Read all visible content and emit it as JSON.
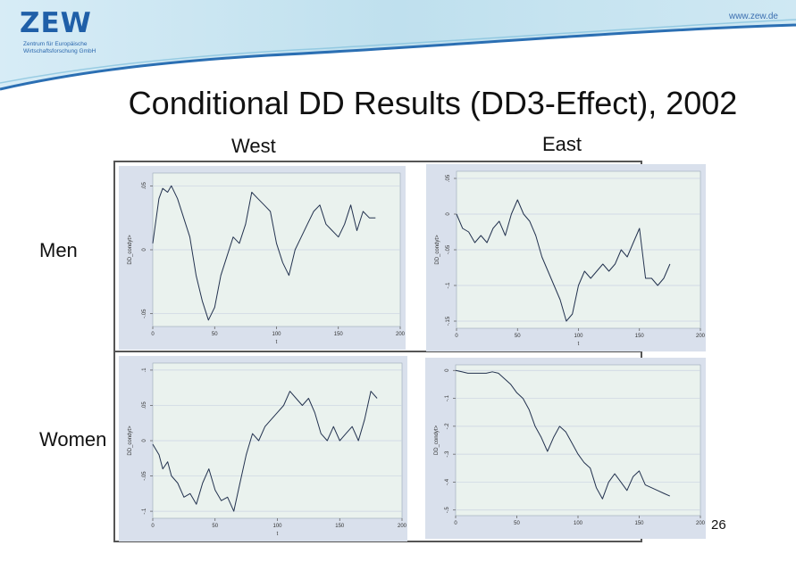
{
  "header": {
    "logo": "ZEW",
    "logo_sub_line1": "Zentrum für Europäische",
    "logo_sub_line2": "Wirtschaftsforschung GmbH",
    "url": "www.zew.de"
  },
  "slide": {
    "title": "Conditional DD Results (DD3-Effect), 2002",
    "col_west": "West",
    "col_east": "East",
    "row_men": "Men",
    "row_women": "Women",
    "page_number": "26"
  },
  "colors": {
    "brand": "#1f5fa8",
    "plot_bg": "#eaf2ee",
    "panel_bg": "#d9e0ec",
    "line": "#23324f",
    "grid": "#c9d3e2"
  },
  "chart_data": [
    {
      "type": "line",
      "panel": "West / Men",
      "xlabel": "t",
      "ylabel": "DD_condyt>",
      "xticks": [
        "0",
        "50",
        "100",
        "150",
        "200"
      ],
      "yticks": [
        ".05",
        "0",
        "-.05"
      ],
      "xlim": [
        0,
        200
      ],
      "ylim": [
        -0.06,
        0.06
      ],
      "x": [
        0,
        5,
        8,
        12,
        15,
        20,
        25,
        30,
        35,
        40,
        45,
        50,
        55,
        60,
        65,
        70,
        75,
        80,
        85,
        90,
        95,
        100,
        105,
        110,
        115,
        120,
        125,
        130,
        135,
        140,
        145,
        150,
        155,
        160,
        165,
        170,
        175,
        180
      ],
      "values": [
        0.005,
        0.04,
        0.048,
        0.045,
        0.05,
        0.04,
        0.025,
        0.01,
        -0.02,
        -0.04,
        -0.055,
        -0.045,
        -0.02,
        -0.005,
        0.01,
        0.005,
        0.02,
        0.045,
        0.04,
        0.035,
        0.03,
        0.005,
        -0.01,
        -0.02,
        0.0,
        0.01,
        0.02,
        0.03,
        0.035,
        0.02,
        0.015,
        0.01,
        0.02,
        0.035,
        0.015,
        0.03,
        0.025,
        0.025
      ]
    },
    {
      "type": "line",
      "panel": "East / Men",
      "xlabel": "t",
      "ylabel": "DD_condyt>",
      "xticks": [
        "0",
        "50",
        "100",
        "150",
        "200"
      ],
      "yticks": [
        ".05",
        "0",
        "-.05",
        "-.1",
        "-.15"
      ],
      "xlim": [
        0,
        200
      ],
      "ylim": [
        -0.16,
        0.06
      ],
      "x": [
        0,
        5,
        10,
        15,
        20,
        25,
        30,
        35,
        40,
        45,
        50,
        55,
        60,
        65,
        70,
        75,
        80,
        85,
        90,
        95,
        100,
        105,
        110,
        115,
        120,
        125,
        130,
        135,
        140,
        145,
        150,
        155,
        160,
        165,
        170,
        175
      ],
      "values": [
        0.0,
        -0.02,
        -0.025,
        -0.04,
        -0.03,
        -0.04,
        -0.02,
        -0.01,
        -0.03,
        0.0,
        0.02,
        0.0,
        -0.01,
        -0.03,
        -0.06,
        -0.08,
        -0.1,
        -0.12,
        -0.15,
        -0.14,
        -0.1,
        -0.08,
        -0.09,
        -0.08,
        -0.07,
        -0.08,
        -0.07,
        -0.05,
        -0.06,
        -0.04,
        -0.02,
        -0.09,
        -0.09,
        -0.1,
        -0.09,
        -0.07
      ]
    },
    {
      "type": "line",
      "panel": "West / Women",
      "xlabel": "t",
      "ylabel": "DD_condyt>",
      "xticks": [
        "0",
        "50",
        "100",
        "150",
        "200"
      ],
      "yticks": [
        ".1",
        ".05",
        "0",
        "-.05",
        "-.1"
      ],
      "xlim": [
        0,
        200
      ],
      "ylim": [
        -0.11,
        0.11
      ],
      "x": [
        0,
        5,
        8,
        12,
        15,
        20,
        25,
        30,
        35,
        40,
        45,
        50,
        55,
        60,
        65,
        70,
        75,
        80,
        85,
        90,
        95,
        100,
        105,
        110,
        115,
        120,
        125,
        130,
        135,
        140,
        145,
        150,
        155,
        160,
        165,
        170,
        175,
        180
      ],
      "values": [
        -0.005,
        -0.02,
        -0.04,
        -0.03,
        -0.05,
        -0.06,
        -0.08,
        -0.075,
        -0.09,
        -0.06,
        -0.04,
        -0.07,
        -0.085,
        -0.08,
        -0.1,
        -0.06,
        -0.02,
        0.01,
        0.0,
        0.02,
        0.03,
        0.04,
        0.05,
        0.07,
        0.06,
        0.05,
        0.06,
        0.04,
        0.01,
        0.0,
        0.02,
        0.0,
        0.01,
        0.02,
        0.0,
        0.03,
        0.07,
        0.06
      ]
    },
    {
      "type": "line",
      "panel": "East / Women",
      "xlabel": "",
      "ylabel": "DD_condyt>",
      "xticks": [
        "0",
        "50",
        "100",
        "150",
        "200"
      ],
      "yticks": [
        "0",
        "-.1",
        "-.2",
        "-.3",
        "-.4",
        "-.5"
      ],
      "xlim": [
        0,
        200
      ],
      "ylim": [
        -0.52,
        0.02
      ],
      "x": [
        0,
        5,
        10,
        15,
        20,
        25,
        30,
        35,
        40,
        45,
        50,
        55,
        60,
        65,
        70,
        75,
        80,
        85,
        90,
        95,
        100,
        105,
        110,
        115,
        120,
        125,
        130,
        135,
        140,
        145,
        150,
        155,
        160,
        165,
        170,
        175
      ],
      "values": [
        0.0,
        -0.005,
        -0.01,
        -0.01,
        -0.01,
        -0.01,
        -0.005,
        -0.01,
        -0.03,
        -0.05,
        -0.08,
        -0.1,
        -0.14,
        -0.2,
        -0.24,
        -0.29,
        -0.24,
        -0.2,
        -0.22,
        -0.26,
        -0.3,
        -0.33,
        -0.35,
        -0.42,
        -0.46,
        -0.4,
        -0.37,
        -0.4,
        -0.43,
        -0.38,
        -0.36,
        -0.41,
        -0.42,
        -0.43,
        -0.44,
        -0.45
      ]
    }
  ]
}
